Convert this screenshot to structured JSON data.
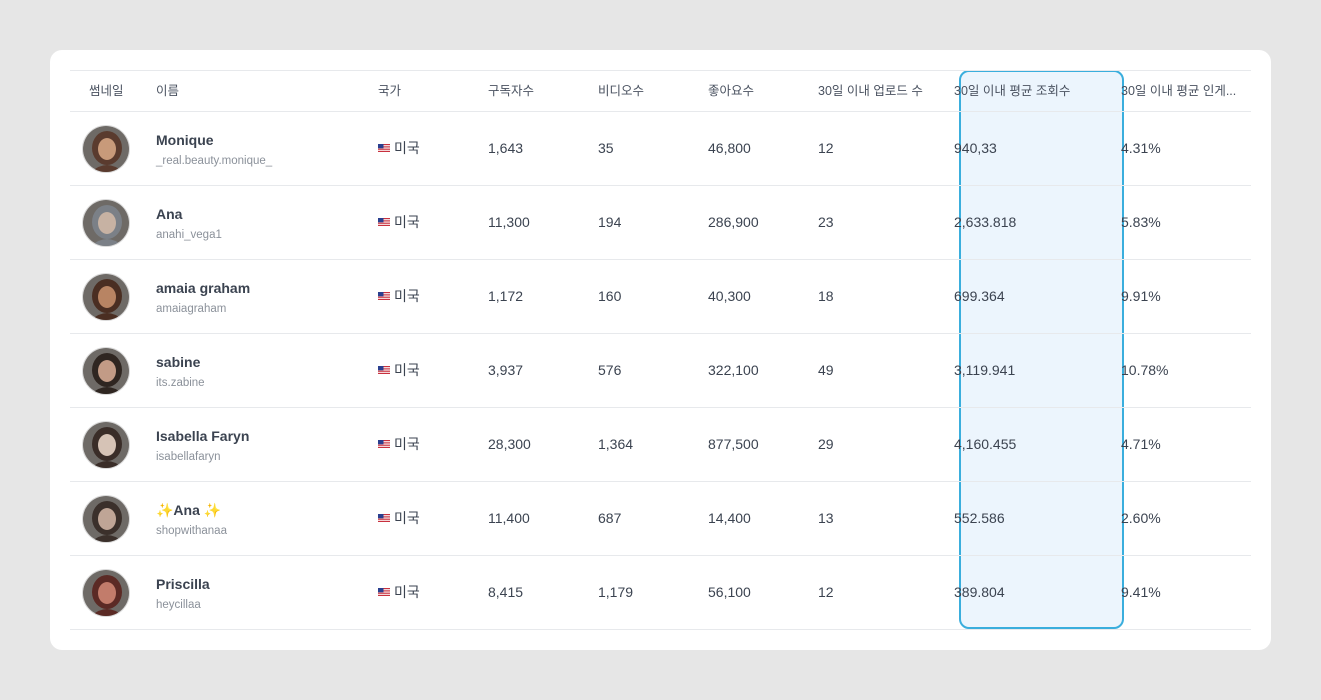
{
  "columns": {
    "thumbnail": "썸네일",
    "name": "이름",
    "country": "국가",
    "subscribers": "구독자수",
    "videos": "비디오수",
    "likes": "좋아요수",
    "uploads_30d": "30일 이내 업로드 수",
    "avg_views_30d": "30일 이내 평균 조회수",
    "avg_engagement_30d": "30일 이내 평균 인게..."
  },
  "highlight_color": "#3aaedd",
  "rows": [
    {
      "name": "Monique",
      "handle": "_real.beauty.monique_",
      "country": "미국",
      "subscribers": "1,643",
      "videos": "35",
      "likes": "46,800",
      "uploads": "12",
      "avg_views": "940,33",
      "engagement": "4.31%",
      "avatar_colors": [
        "#5a3b2e",
        "#c89a7a"
      ]
    },
    {
      "name": "Ana",
      "handle": "anahi_vega1",
      "country": "미국",
      "subscribers": "11,300",
      "videos": "194",
      "likes": "286,900",
      "uploads": "23",
      "avg_views": "2,633.818",
      "engagement": "5.83%",
      "avatar_colors": [
        "#7b8087",
        "#c7b2a3"
      ]
    },
    {
      "name": "amaia graham",
      "handle": "amaiagraham",
      "country": "미국",
      "subscribers": "1,172",
      "videos": "160",
      "likes": "40,300",
      "uploads": "18",
      "avg_views": "699.364",
      "engagement": "9.91%",
      "avatar_colors": [
        "#4a2e22",
        "#b88463"
      ]
    },
    {
      "name": "sabine",
      "handle": "its.zabine",
      "country": "미국",
      "subscribers": "3,937",
      "videos": "576",
      "likes": "322,100",
      "uploads": "49",
      "avg_views": "3,119.941",
      "engagement": "10.78%",
      "avatar_colors": [
        "#2f2621",
        "#c29b86"
      ]
    },
    {
      "name": "Isabella Faryn",
      "handle": "isabellafaryn",
      "country": "미국",
      "subscribers": "28,300",
      "videos": "1,364",
      "likes": "877,500",
      "uploads": "29",
      "avg_views": "4,160.455",
      "engagement": "4.71%",
      "avatar_colors": [
        "#3a2d28",
        "#d6c3b6"
      ]
    },
    {
      "name": "✨Ana ✨",
      "handle": "shopwithanaa",
      "country": "미국",
      "subscribers": "11,400",
      "videos": "687",
      "likes": "14,400",
      "uploads": "13",
      "avg_views": "552.586",
      "engagement": "2.60%",
      "avatar_colors": [
        "#3b302b",
        "#bfa596"
      ]
    },
    {
      "name": "Priscilla",
      "handle": "heycillaa",
      "country": "미국",
      "subscribers": "8,415",
      "videos": "1,179",
      "likes": "56,100",
      "uploads": "12",
      "avg_views": "389.804",
      "engagement": "9.41%",
      "avatar_colors": [
        "#5b2a25",
        "#c27c6b"
      ]
    }
  ]
}
